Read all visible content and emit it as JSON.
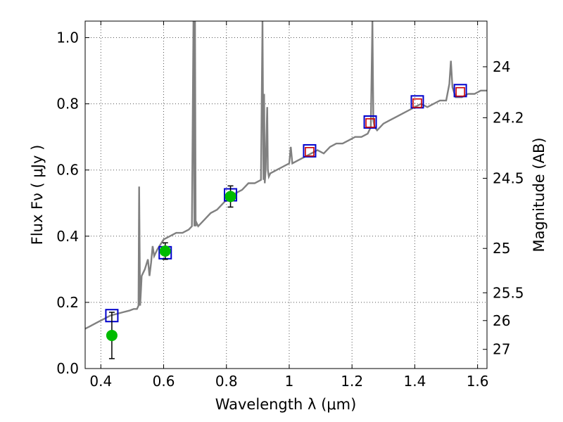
{
  "chart_data": {
    "type": "line",
    "xlabel": "Wavelength  λ (μm)",
    "ylabel": "Flux  Fν  ( μJy )",
    "ylabel_right": "Magnitude (AB)",
    "xlim": [
      0.35,
      1.63
    ],
    "ylim": [
      0.0,
      1.05
    ],
    "grid": true,
    "x_ticks": [
      {
        "v": 0.4,
        "label": "0.4"
      },
      {
        "v": 0.6,
        "label": "0.6"
      },
      {
        "v": 0.8,
        "label": "0.8"
      },
      {
        "v": 1.0,
        "label": "1"
      },
      {
        "v": 1.2,
        "label": "1.2"
      },
      {
        "v": 1.4,
        "label": "1.4"
      },
      {
        "v": 1.6,
        "label": "1.6"
      }
    ],
    "y_ticks": [
      {
        "v": 0.0,
        "label": "0.0"
      },
      {
        "v": 0.2,
        "label": "0.2"
      },
      {
        "v": 0.4,
        "label": "0.4"
      },
      {
        "v": 0.6,
        "label": "0.6"
      },
      {
        "v": 0.8,
        "label": "0.8"
      },
      {
        "v": 1.0,
        "label": "1.0"
      }
    ],
    "right_ticks": [
      {
        "flux": 0.912,
        "label": "24"
      },
      {
        "flux": 0.758,
        "label": "24.2"
      },
      {
        "flux": 0.575,
        "label": "24.5"
      },
      {
        "flux": 0.363,
        "label": "25"
      },
      {
        "flux": 0.229,
        "label": "25.5"
      },
      {
        "flux": 0.145,
        "label": "26"
      },
      {
        "flux": 0.058,
        "label": "27"
      }
    ],
    "series": [
      {
        "style": "line",
        "color": "#808080",
        "x": [
          0.35,
          0.37,
          0.39,
          0.41,
          0.43,
          0.45,
          0.47,
          0.49,
          0.505,
          0.515,
          0.52,
          0.522,
          0.525,
          0.528,
          0.53,
          0.54,
          0.55,
          0.555,
          0.56,
          0.565,
          0.57,
          0.58,
          0.6,
          0.62,
          0.64,
          0.66,
          0.68,
          0.69,
          0.695,
          0.698,
          0.7,
          0.702,
          0.705,
          0.71,
          0.73,
          0.75,
          0.77,
          0.79,
          0.81,
          0.83,
          0.85,
          0.87,
          0.89,
          0.91,
          0.915,
          0.918,
          0.92,
          0.922,
          0.925,
          0.93,
          0.932,
          0.935,
          0.94,
          0.96,
          0.98,
          1.0,
          1.005,
          1.01,
          1.03,
          1.05,
          1.07,
          1.09,
          1.11,
          1.13,
          1.15,
          1.17,
          1.19,
          1.21,
          1.23,
          1.25,
          1.26,
          1.265,
          1.268,
          1.272,
          1.28,
          1.3,
          1.32,
          1.34,
          1.36,
          1.38,
          1.4,
          1.42,
          1.44,
          1.46,
          1.48,
          1.5,
          1.51,
          1.515,
          1.52,
          1.53,
          1.55,
          1.57,
          1.59,
          1.61,
          1.63
        ],
        "y": [
          0.12,
          0.13,
          0.14,
          0.15,
          0.16,
          0.165,
          0.17,
          0.175,
          0.18,
          0.18,
          0.19,
          0.55,
          0.19,
          0.24,
          0.28,
          0.3,
          0.33,
          0.28,
          0.32,
          0.37,
          0.34,
          0.36,
          0.39,
          0.4,
          0.41,
          0.41,
          0.42,
          0.43,
          1.05,
          0.43,
          1.05,
          0.43,
          0.44,
          0.43,
          0.45,
          0.47,
          0.48,
          0.5,
          0.52,
          0.53,
          0.54,
          0.56,
          0.56,
          0.57,
          1.05,
          0.57,
          0.83,
          0.56,
          0.6,
          0.79,
          0.6,
          0.58,
          0.59,
          0.6,
          0.61,
          0.62,
          0.67,
          0.62,
          0.63,
          0.64,
          0.65,
          0.66,
          0.65,
          0.67,
          0.68,
          0.68,
          0.69,
          0.7,
          0.7,
          0.71,
          0.73,
          1.05,
          0.75,
          0.73,
          0.72,
          0.74,
          0.75,
          0.76,
          0.77,
          0.78,
          0.79,
          0.8,
          0.79,
          0.8,
          0.81,
          0.81,
          0.86,
          0.93,
          0.85,
          0.82,
          0.82,
          0.83,
          0.83,
          0.84,
          0.84
        ]
      },
      {
        "style": "open-square",
        "color": "#0000cc",
        "x": [
          0.435,
          0.605,
          0.813,
          1.065,
          1.258,
          1.408,
          1.545
        ],
        "y": [
          0.16,
          0.35,
          0.525,
          0.658,
          0.745,
          0.806,
          0.84
        ]
      },
      {
        "style": "open-square",
        "color": "#cc0000",
        "x": [
          1.065,
          1.258,
          1.408,
          1.545
        ],
        "y": [
          0.655,
          0.742,
          0.802,
          0.836
        ]
      },
      {
        "style": "filled-circle",
        "color": "#00bb00",
        "x": [
          0.435,
          0.605,
          0.813
        ],
        "y": [
          0.1,
          0.355,
          0.52
        ],
        "yerr": [
          0.07,
          0.025,
          0.032
        ]
      }
    ]
  }
}
